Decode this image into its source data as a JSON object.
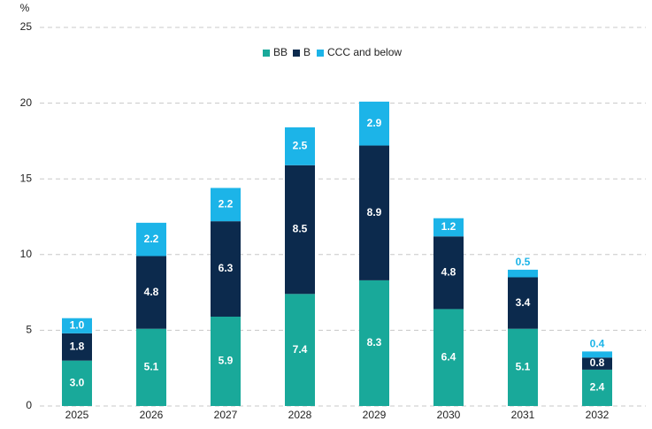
{
  "chart_data": {
    "type": "stacked-bar",
    "y_label": "%",
    "categories": [
      "2025",
      "2026",
      "2027",
      "2028",
      "2029",
      "2030",
      "2031",
      "2032"
    ],
    "series": [
      {
        "name": "BB",
        "color": "#19a99a",
        "values": [
          3.0,
          5.1,
          5.9,
          7.4,
          8.3,
          6.4,
          5.1,
          2.4
        ],
        "value_labels": [
          "3.0",
          "5.1",
          "5.9",
          "7.4",
          "8.3",
          "6.4",
          "5.1",
          "2.4"
        ]
      },
      {
        "name": "B",
        "color": "#0c2a4d",
        "values": [
          1.8,
          4.8,
          6.3,
          8.5,
          8.9,
          4.8,
          3.4,
          0.8
        ],
        "value_labels": [
          "1.8",
          "4.8",
          "6.3",
          "8.5",
          "8.9",
          "4.8",
          "3.4",
          "0.8"
        ]
      },
      {
        "name": "CCC and below",
        "color": "#1cb4e8",
        "values": [
          1.0,
          2.2,
          2.2,
          2.5,
          2.9,
          1.2,
          0.5,
          0.4
        ],
        "value_labels": [
          "1.0",
          "2.2",
          "2.2",
          "2.5",
          "2.9",
          "1.2",
          "0.5",
          "0.4"
        ]
      }
    ],
    "ylim": [
      0,
      25
    ],
    "yticks": [
      0,
      5,
      10,
      15,
      20,
      25
    ],
    "grid": true,
    "legend": "top"
  }
}
